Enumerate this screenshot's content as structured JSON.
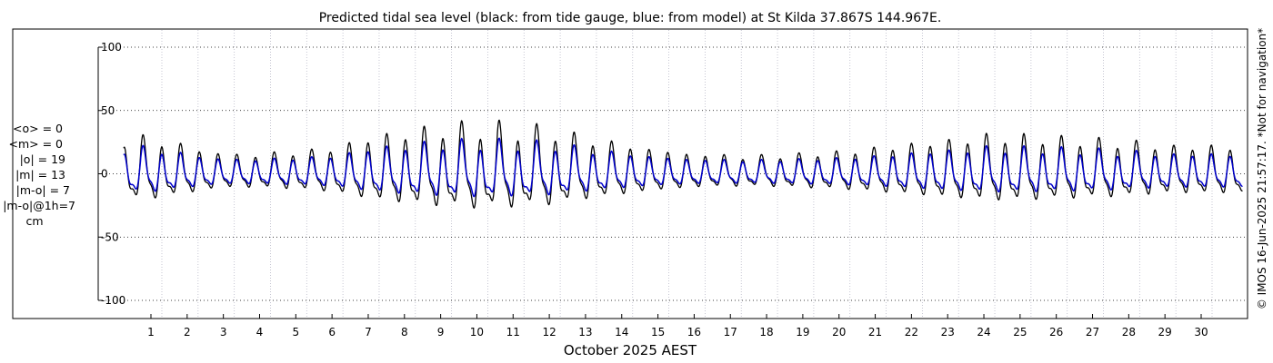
{
  "chart_data": {
    "type": "line",
    "title": "Predicted tidal sea level (black: from tide gauge, blue: from model) at St Kilda 37.867S 144.967E.",
    "xlabel": "October 2025 AEST",
    "ylabel": "",
    "xlim": [
      0.2,
      31.2
    ],
    "ylim": [
      -100,
      100
    ],
    "grid": true,
    "x_ticks": [
      1,
      2,
      3,
      4,
      5,
      6,
      7,
      8,
      9,
      10,
      11,
      12,
      13,
      14,
      15,
      16,
      17,
      18,
      19,
      20,
      21,
      22,
      23,
      24,
      25,
      26,
      27,
      28,
      29,
      30
    ],
    "x_tick_labels": [
      "1",
      "2",
      "3",
      "4",
      "5",
      "6",
      "7",
      "8",
      "9",
      "10",
      "11",
      "12",
      "13",
      "14",
      "15",
      "16",
      "17",
      "18",
      "19",
      "20",
      "21",
      "22",
      "23",
      "24",
      "25",
      "26",
      "27",
      "28",
      "29",
      "30"
    ],
    "y_ticks": [
      100,
      50,
      0,
      -50,
      -100
    ],
    "y_tick_labels": [
      "100",
      "50",
      "0",
      "-50",
      "-100"
    ],
    "x_range_plotted": [
      0.25,
      31.15
    ],
    "series": [
      {
        "name": "tide gauge",
        "color": "#000000",
        "amplitude_cm": [
          36,
          36,
          28,
          20,
          20,
          22,
          26,
          36,
          42,
          46,
          48,
          46,
          44,
          36,
          30,
          24,
          20,
          18,
          18,
          20,
          22,
          26,
          30,
          34,
          38,
          38,
          36,
          34,
          32,
          28,
          28
        ],
        "diurnal_inequality_cm": [
          -6,
          -4,
          -2,
          0,
          2,
          2,
          2,
          2,
          4,
          6,
          8,
          8,
          6,
          4,
          2,
          0,
          0,
          2,
          2,
          2,
          2,
          2,
          2,
          2,
          4,
          4,
          4,
          4,
          4,
          2,
          2
        ]
      },
      {
        "name": "model",
        "color": "#0000cc",
        "amplitude_cm": [
          26,
          26,
          20,
          15,
          15,
          16,
          18,
          25,
          29,
          31,
          32,
          31,
          30,
          25,
          21,
          17,
          15,
          14,
          14,
          15,
          16,
          18,
          21,
          24,
          26,
          26,
          25,
          24,
          22,
          20,
          20
        ],
        "diurnal_inequality_cm": [
          -4,
          -3,
          -1,
          0,
          1,
          1,
          1,
          1,
          3,
          4,
          5,
          5,
          4,
          3,
          1,
          0,
          0,
          1,
          1,
          1,
          1,
          1,
          1,
          1,
          3,
          3,
          3,
          3,
          3,
          1,
          1
        ]
      }
    ]
  },
  "stats": {
    "lines": [
      "<o> = 0",
      "<m> = 0",
      "|o| = 19",
      "|m| = 13",
      "|m-o| = 7",
      "|m-o|@1h=7",
      "cm"
    ]
  },
  "footer": {
    "credit": "© IMOS 16-Jun-2025 21:57:17.  *Not for navigation*"
  }
}
